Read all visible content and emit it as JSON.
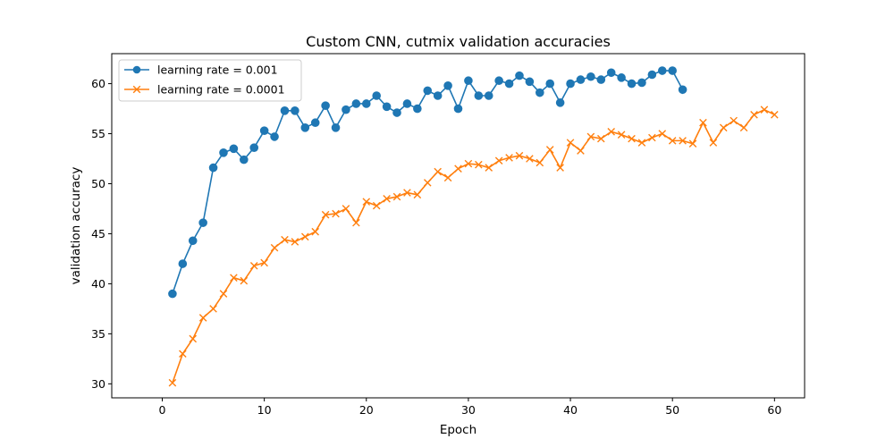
{
  "chart_data": {
    "type": "line",
    "title": "Custom CNN, cutmix validation accuracies",
    "xlabel": "Epoch",
    "ylabel": "validation accuracy",
    "xlim": [
      -4.95,
      62.95
    ],
    "ylim": [
      28.6,
      63.0
    ],
    "xticks": [
      0,
      10,
      20,
      30,
      40,
      50,
      60
    ],
    "yticks": [
      30,
      35,
      40,
      45,
      50,
      55,
      60
    ],
    "grid": false,
    "legend_position": "top-left",
    "series": [
      {
        "name": "learning rate = 0.001",
        "color": "#1f77b4",
        "marker": "circle",
        "x": [
          1,
          2,
          3,
          4,
          5,
          6,
          7,
          8,
          9,
          10,
          11,
          12,
          13,
          14,
          15,
          16,
          17,
          18,
          19,
          20,
          21,
          22,
          23,
          24,
          25,
          26,
          27,
          28,
          29,
          30,
          31,
          32,
          33,
          34,
          35,
          36,
          37,
          38,
          39,
          40,
          41,
          42,
          43,
          44,
          45,
          46,
          47,
          48,
          49,
          50,
          51
        ],
        "values": [
          39.0,
          42.0,
          44.3,
          46.1,
          51.6,
          53.1,
          53.5,
          52.4,
          53.6,
          55.3,
          54.7,
          57.3,
          57.3,
          55.6,
          56.1,
          57.8,
          55.6,
          57.4,
          58.0,
          58.0,
          58.8,
          57.7,
          57.1,
          58.0,
          57.5,
          59.3,
          58.8,
          59.8,
          57.5,
          60.3,
          58.8,
          58.8,
          60.3,
          60.0,
          60.8,
          60.2,
          59.1,
          60.0,
          58.1,
          60.0,
          60.4,
          60.7,
          60.4,
          61.1,
          60.6,
          60.0,
          60.1,
          60.9,
          61.3,
          61.3,
          59.4
        ]
      },
      {
        "name": "learning rate = 0.0001",
        "color": "#ff7f0e",
        "marker": "x",
        "x": [
          1,
          2,
          3,
          4,
          5,
          6,
          7,
          8,
          9,
          10,
          11,
          12,
          13,
          14,
          15,
          16,
          17,
          18,
          19,
          20,
          21,
          22,
          23,
          24,
          25,
          26,
          27,
          28,
          29,
          30,
          31,
          32,
          33,
          34,
          35,
          36,
          37,
          38,
          39,
          40,
          41,
          42,
          43,
          44,
          45,
          46,
          47,
          48,
          49,
          50,
          51,
          52,
          53,
          54,
          55,
          56,
          57,
          58,
          59,
          60
        ],
        "values": [
          30.1,
          33.0,
          34.5,
          36.6,
          37.5,
          39.0,
          40.6,
          40.3,
          41.8,
          42.1,
          43.6,
          44.4,
          44.2,
          44.7,
          45.2,
          46.9,
          47.0,
          47.5,
          46.1,
          48.2,
          47.8,
          48.5,
          48.7,
          49.1,
          48.9,
          50.1,
          51.2,
          50.6,
          51.5,
          52.0,
          51.9,
          51.6,
          52.3,
          52.6,
          52.8,
          52.5,
          52.1,
          53.4,
          51.6,
          54.1,
          53.3,
          54.7,
          54.5,
          55.2,
          54.9,
          54.5,
          54.1,
          54.6,
          55.0,
          54.3,
          54.3,
          54.0,
          56.1,
          54.1,
          55.6,
          56.3,
          55.6,
          56.9,
          57.4,
          56.9
        ]
      }
    ]
  }
}
